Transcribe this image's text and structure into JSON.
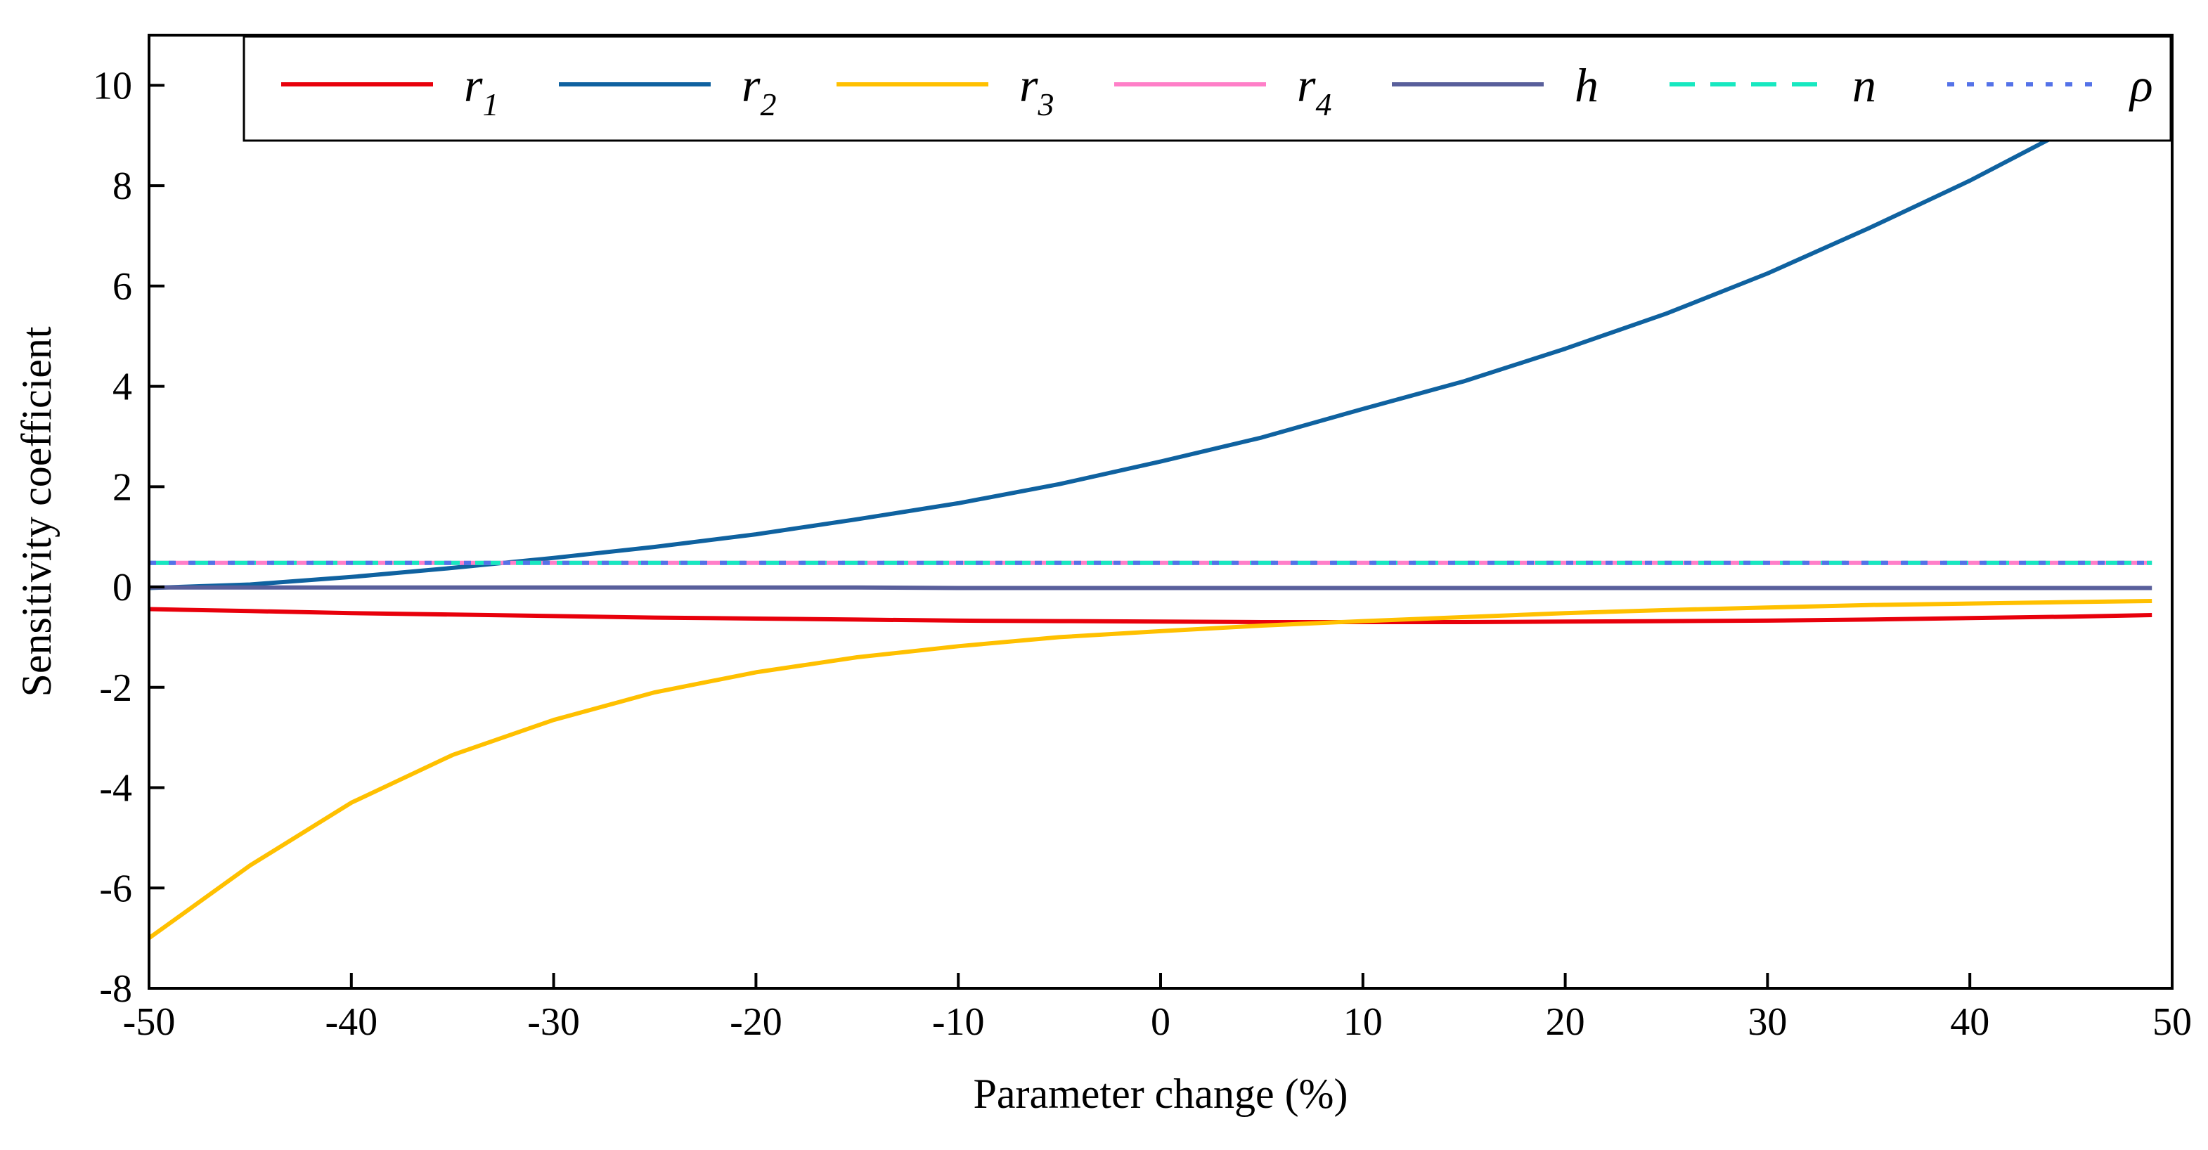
{
  "chart_data": {
    "type": "line",
    "xlabel": "Parameter change (%)",
    "ylabel": "Sensitivity coefficient",
    "xlim": [
      -50,
      50
    ],
    "ylim": [
      -8,
      11
    ],
    "xticks": [
      -50,
      -40,
      -30,
      -20,
      -10,
      0,
      10,
      20,
      30,
      40,
      50
    ],
    "yticks": [
      -8,
      -6,
      -4,
      -2,
      0,
      2,
      4,
      6,
      8,
      10
    ],
    "xtick_labels": [
      "-50",
      "-40",
      "-30",
      "-20",
      "-10",
      "0",
      "10",
      "20",
      "30",
      "40",
      "50"
    ],
    "ytick_labels": [
      "-8",
      "-6",
      "-4",
      "-2",
      "0",
      "2",
      "4",
      "6",
      "8",
      "10"
    ],
    "grid": false,
    "legend": {
      "placement": "top",
      "columns": 7
    },
    "x": [
      -50,
      -45,
      -40,
      -35,
      -30,
      -25,
      -20,
      -15,
      -10,
      -5,
      0,
      5,
      10,
      15,
      20,
      25,
      30,
      35,
      40,
      45,
      49
    ],
    "series": [
      {
        "name": "r",
        "sub": "1",
        "color": "#e8000b",
        "dash": "solid",
        "values": [
          -0.44,
          -0.48,
          -0.52,
          -0.55,
          -0.58,
          -0.61,
          -0.63,
          -0.65,
          -0.67,
          -0.68,
          -0.69,
          -0.7,
          -0.7,
          -0.7,
          -0.69,
          -0.68,
          -0.67,
          -0.65,
          -0.62,
          -0.59,
          -0.56
        ]
      },
      {
        "name": "r",
        "sub": "2",
        "color": "#0f62a0",
        "dash": "solid",
        "values": [
          -0.02,
          0.05,
          0.2,
          0.38,
          0.58,
          0.8,
          1.05,
          1.35,
          1.67,
          2.05,
          2.5,
          2.98,
          3.55,
          4.1,
          4.75,
          5.45,
          6.25,
          7.15,
          8.1,
          9.15,
          10.0
        ]
      },
      {
        "name": "r",
        "sub": "3",
        "color": "#ffc000",
        "dash": "solid",
        "values": [
          -7.0,
          -5.55,
          -4.3,
          -3.35,
          -2.65,
          -2.1,
          -1.7,
          -1.4,
          -1.18,
          -1.0,
          -0.88,
          -0.77,
          -0.68,
          -0.6,
          -0.52,
          -0.46,
          -0.41,
          -0.36,
          -0.33,
          -0.3,
          -0.28
        ]
      },
      {
        "name": "r",
        "sub": "4",
        "color": "#ff7fc8",
        "dash": "solid",
        "values": [
          0.48,
          0.48,
          0.48,
          0.48,
          0.48,
          0.48,
          0.48,
          0.48,
          0.48,
          0.48,
          0.48,
          0.48,
          0.48,
          0.48,
          0.48,
          0.48,
          0.48,
          0.48,
          0.48,
          0.48,
          0.48
        ]
      },
      {
        "name": "h",
        "sub": "",
        "color": "#595f9b",
        "dash": "solid",
        "values": [
          -0.01,
          -0.01,
          -0.01,
          -0.01,
          -0.01,
          -0.01,
          -0.01,
          -0.01,
          -0.02,
          -0.02,
          -0.02,
          -0.02,
          -0.02,
          -0.02,
          -0.02,
          -0.02,
          -0.02,
          -0.02,
          -0.02,
          -0.02,
          -0.02
        ]
      },
      {
        "name": "n",
        "sub": "",
        "color": "#17e8c0",
        "dash": "dashed",
        "values": [
          0.48,
          0.48,
          0.48,
          0.48,
          0.48,
          0.48,
          0.48,
          0.48,
          0.48,
          0.48,
          0.48,
          0.48,
          0.48,
          0.48,
          0.48,
          0.48,
          0.48,
          0.48,
          0.48,
          0.48,
          0.48
        ]
      },
      {
        "name": "ρ",
        "sub": "",
        "color": "#5472e8",
        "dash": "dotted",
        "values": [
          0.48,
          0.48,
          0.48,
          0.48,
          0.48,
          0.48,
          0.48,
          0.48,
          0.48,
          0.48,
          0.48,
          0.48,
          0.48,
          0.48,
          0.48,
          0.48,
          0.48,
          0.48,
          0.48,
          0.48,
          0.48
        ]
      }
    ]
  }
}
